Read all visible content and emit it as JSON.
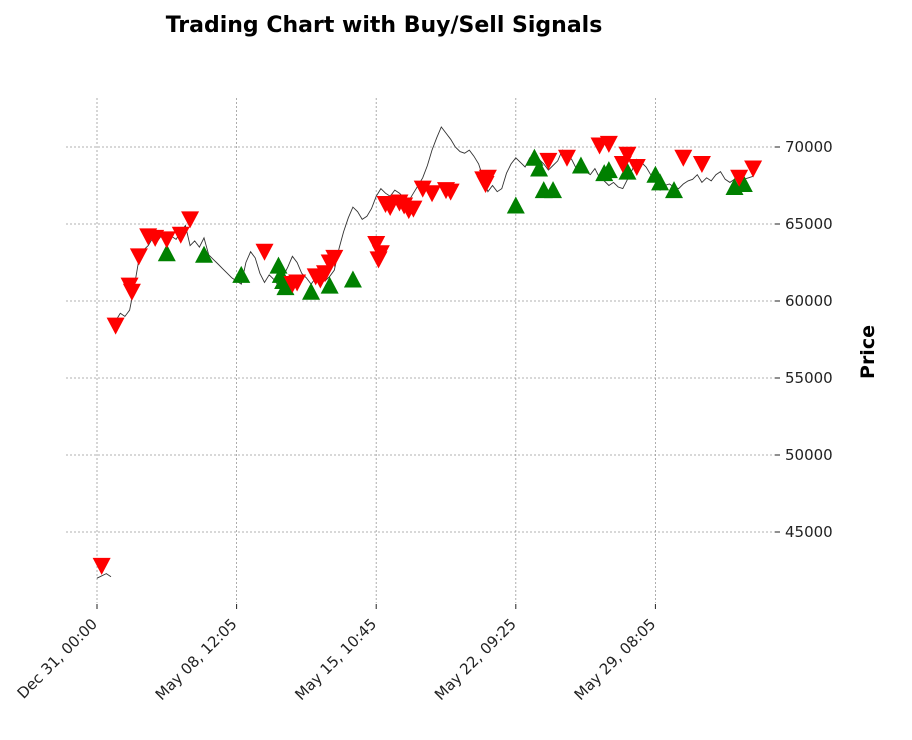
{
  "chart_data": {
    "type": "line",
    "title": "Trading Chart with Buy/Sell Signals",
    "ylabel": "Price",
    "ylim": [
      40500,
      73500
    ],
    "y_ticks": [
      45000,
      50000,
      55000,
      60000,
      65000,
      70000
    ],
    "x_tick_labels": [
      "Dec 31, 00:00",
      "May 08, 12:05",
      "May 15, 10:45",
      "May 22, 09:25",
      "May 29, 08:05"
    ],
    "x_tick_positions": [
      0,
      30,
      60,
      90,
      120
    ],
    "xlim": [
      -2,
      144
    ],
    "grid": true,
    "colors": {
      "price": "#333333",
      "buy": "#008000",
      "sell": "#ff0000"
    },
    "price_series": {
      "x": [
        0,
        2,
        3,
        4,
        5,
        6,
        7,
        8,
        9,
        10,
        11,
        12,
        13,
        14,
        15,
        16,
        17,
        18,
        19,
        20,
        21,
        22,
        23,
        24,
        25,
        26,
        27,
        28,
        29,
        30,
        31,
        32,
        33,
        34,
        35,
        36,
        37,
        38,
        39,
        40,
        41,
        42,
        43,
        44,
        45,
        46,
        47,
        48,
        49,
        50,
        51,
        52,
        53,
        54,
        55,
        56,
        57,
        58,
        59,
        60,
        61,
        62,
        63,
        64,
        65,
        66,
        67,
        68,
        69,
        70,
        71,
        72,
        73,
        74,
        75,
        76,
        77,
        78,
        79,
        80,
        81,
        82,
        83,
        84,
        85,
        86,
        87,
        88,
        89,
        90,
        91,
        92,
        93,
        94,
        95,
        96,
        97,
        98,
        99,
        100,
        101,
        102,
        103,
        104,
        105,
        106,
        107,
        108,
        109,
        110,
        111,
        112,
        113,
        114,
        115,
        116,
        117,
        118,
        119,
        120,
        121,
        122,
        123,
        124,
        125,
        126,
        127,
        128,
        129,
        130,
        131,
        132,
        133,
        134,
        135,
        136,
        137,
        138,
        139,
        140,
        141
      ],
      "y": [
        42000,
        42300,
        42100,
        58700,
        59200,
        59000,
        59400,
        60900,
        62700,
        63300,
        63600,
        64100,
        63900,
        64300,
        63800,
        64200,
        64000,
        64500,
        64900,
        63600,
        63900,
        63500,
        64100,
        63000,
        62700,
        62400,
        62100,
        61800,
        61500,
        61300,
        61100,
        62500,
        63200,
        62800,
        61800,
        61200,
        61700,
        61400,
        61000,
        61600,
        62200,
        62900,
        62500,
        61800,
        61500,
        61100,
        61500,
        61800,
        61300,
        61600,
        62000,
        63400,
        64500,
        65400,
        66100,
        65800,
        65300,
        65500,
        66000,
        66800,
        67300,
        67000,
        66800,
        67200,
        67000,
        66700,
        66500,
        67000,
        67500,
        68000,
        68800,
        69800,
        70600,
        71300,
        70900,
        70500,
        70000,
        69700,
        69600,
        69800,
        69400,
        68900,
        68000,
        67100,
        67500,
        67100,
        67300,
        68300,
        68900,
        69300,
        69000,
        68700,
        69300,
        69500,
        69200,
        68900,
        68500,
        68800,
        69100,
        69800,
        69500,
        69200,
        68600,
        68900,
        68400,
        68200,
        68600,
        68000,
        67800,
        67500,
        67700,
        67400,
        67300,
        67900,
        68500,
        69200,
        69000,
        68700,
        68200,
        67700,
        67200,
        67500,
        67600,
        67400,
        67300,
        67600,
        67800,
        67900,
        68200,
        67700,
        68000,
        67800,
        68200,
        68400,
        67900,
        67700,
        67900,
        68100,
        67900,
        68000,
        68100
      ]
    },
    "sell_signals": {
      "x": [
        1,
        4,
        7,
        7.5,
        9,
        11,
        12.5,
        15,
        18,
        20,
        36,
        42,
        43,
        47,
        48,
        49,
        50,
        51,
        60,
        60.5,
        61,
        62,
        63,
        65,
        66,
        67,
        68,
        70,
        72,
        75,
        76,
        83,
        83.5,
        84,
        97,
        101,
        108,
        110,
        113,
        114,
        116,
        126,
        130,
        138,
        141
      ],
      "y": [
        42800,
        58400,
        61000,
        60600,
        62900,
        64200,
        64100,
        64000,
        64300,
        65300,
        63200,
        61100,
        61200,
        61600,
        61400,
        61800,
        62500,
        62800,
        63700,
        62700,
        63100,
        66300,
        66100,
        66400,
        66200,
        65900,
        66000,
        67300,
        67000,
        67200,
        67100,
        67900,
        67600,
        68000,
        69100,
        69300,
        70100,
        70200,
        68900,
        69500,
        68700,
        69300,
        68900,
        68000,
        68600
      ]
    },
    "buy_signals": {
      "x": [
        15,
        23,
        31,
        39,
        39.5,
        40,
        40.5,
        46,
        50,
        55,
        90,
        94,
        95,
        96,
        98,
        104,
        109,
        110,
        114,
        120,
        121,
        124,
        137,
        139
      ],
      "y": [
        63100,
        63000,
        61700,
        62300,
        61700,
        61300,
        60900,
        60600,
        61000,
        61400,
        66200,
        69300,
        68600,
        67200,
        67200,
        68800,
        68300,
        68500,
        68400,
        68200,
        67700,
        67200,
        67400,
        67600
      ]
    }
  }
}
